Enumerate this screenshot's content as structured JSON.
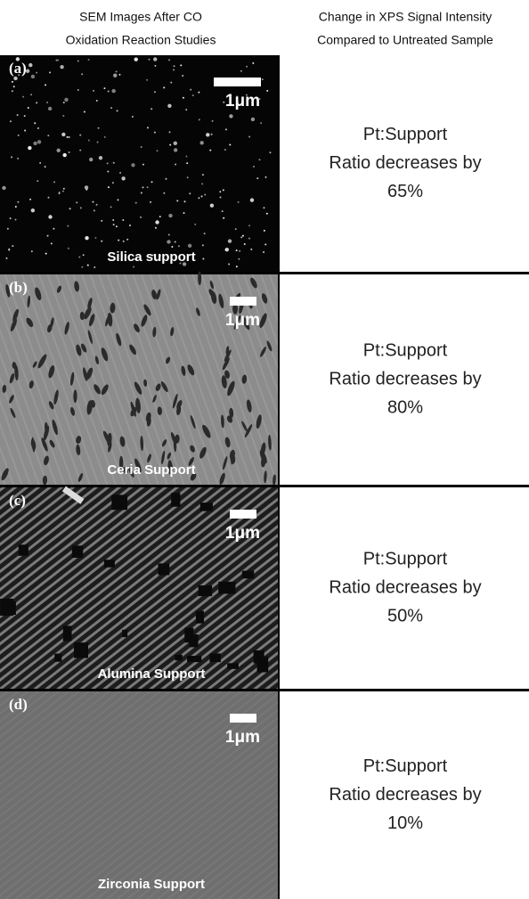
{
  "header": {
    "columns": [
      [
        "SEM Images After CO",
        "Oxidation Reaction Studies"
      ],
      [
        "Change in XPS Signal Intensity",
        "Compared to Untreated Sample"
      ]
    ]
  },
  "rows": [
    {
      "label": "(a)",
      "scale": "1μm",
      "support": "Silica support",
      "result": [
        "Pt:Support",
        "Ratio decreases by",
        "65%"
      ]
    },
    {
      "label": "(b)",
      "scale": "1μm",
      "support": "Ceria Support",
      "result": [
        "Pt:Support",
        "Ratio decreases by",
        "80%"
      ]
    },
    {
      "label": "(c)",
      "scale": "1μm",
      "support": "Alumina Support",
      "result": [
        "Pt:Support",
        "Ratio decreases by",
        "50%"
      ]
    },
    {
      "label": "(d)",
      "scale": "1μm",
      "support": "Zirconia Support",
      "result": [
        "Pt:Support",
        "Ratio decreases by",
        "10%"
      ]
    }
  ]
}
